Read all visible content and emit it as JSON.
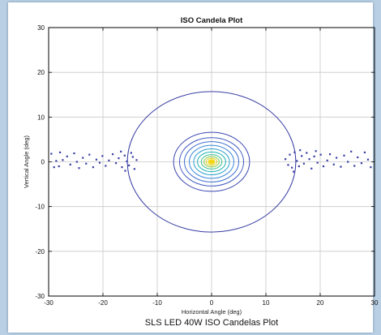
{
  "figure": {
    "caption": "SLS LED 40W ISO Candelas Plot"
  },
  "chart_data": {
    "type": "contour",
    "title": "ISO Candela Plot",
    "xlabel": "Horizontal Angle (deg)",
    "ylabel": "Vertical Angle (deg)",
    "xlim": [
      -30,
      30
    ],
    "ylim": [
      -30,
      30
    ],
    "xticks": [
      -30,
      -20,
      -10,
      0,
      10,
      20,
      30
    ],
    "yticks": [
      -30,
      -20,
      -10,
      0,
      10,
      20,
      30
    ],
    "grid": true,
    "contours": [
      {
        "cx": 0,
        "cy": 0,
        "rx": 15.5,
        "ry": 15.7,
        "color": "#3a3fa4"
      },
      {
        "cx": 0,
        "cy": 0,
        "rx": 7.0,
        "ry": 6.6,
        "color": "#3c46b0"
      },
      {
        "cx": 0,
        "cy": 0,
        "rx": 5.9,
        "ry": 5.4,
        "color": "#3f58c0"
      },
      {
        "cx": 0,
        "cy": 0,
        "rx": 5.0,
        "ry": 4.5,
        "color": "#3f6fd0"
      },
      {
        "cx": 0,
        "cy": 0,
        "rx": 4.1,
        "ry": 3.7,
        "color": "#3a88da"
      },
      {
        "cx": 0,
        "cy": 0,
        "rx": 3.3,
        "ry": 2.9,
        "color": "#2ea1cf"
      },
      {
        "cx": 0,
        "cy": 0,
        "rx": 2.6,
        "ry": 2.2,
        "color": "#22b4b4"
      },
      {
        "cx": 0,
        "cy": 0,
        "rx": 1.9,
        "ry": 1.6,
        "color": "#36be8a"
      },
      {
        "cx": 0,
        "cy": 0,
        "rx": 1.4,
        "ry": 1.15,
        "color": "#86c840"
      },
      {
        "cx": 0,
        "cy": 0,
        "rx": 1.0,
        "ry": 0.8,
        "color": "#d7d020"
      },
      {
        "cx": 0,
        "cy": 0,
        "rx": 0.6,
        "ry": 0.5,
        "color": "#f2d71a"
      }
    ],
    "scatter_color": "#3a3fa4",
    "scatter_points": [
      [
        -29.5,
        1.8
      ],
      [
        -28.6,
        0.2
      ],
      [
        -29.0,
        -1.2
      ],
      [
        -27.9,
        2.1
      ],
      [
        -27.4,
        0.4
      ],
      [
        -28.1,
        -1.0
      ],
      [
        -26.6,
        1.2
      ],
      [
        -26.0,
        -0.6
      ],
      [
        -25.3,
        1.9
      ],
      [
        -24.8,
        0.0
      ],
      [
        -24.4,
        -1.4
      ],
      [
        -23.7,
        0.9
      ],
      [
        -23.1,
        -0.4
      ],
      [
        -22.5,
        1.6
      ],
      [
        -21.8,
        -1.2
      ],
      [
        -21.2,
        0.5
      ],
      [
        -20.6,
        -0.2
      ],
      [
        -20.1,
        1.3
      ],
      [
        -19.5,
        -0.9
      ],
      [
        -18.9,
        0.3
      ],
      [
        -18.2,
        1.7
      ],
      [
        -17.6,
        -0.3
      ],
      [
        -17.1,
        0.8
      ],
      [
        -16.5,
        -1.2
      ],
      [
        -16.0,
        1.4
      ],
      [
        -15.6,
        0.1
      ],
      [
        -15.2,
        -0.8
      ],
      [
        -14.8,
        2.0
      ],
      [
        -14.5,
        1.1
      ],
      [
        -14.2,
        -1.6
      ],
      [
        -16.7,
        2.3
      ],
      [
        -15.9,
        -2.0
      ],
      [
        -13.8,
        0.4
      ],
      [
        13.6,
        0.6
      ],
      [
        14.1,
        -0.7
      ],
      [
        14.4,
        1.6
      ],
      [
        14.8,
        -1.3
      ],
      [
        15.3,
        2.1
      ],
      [
        15.7,
        0.2
      ],
      [
        16.1,
        -1.0
      ],
      [
        16.6,
        1.3
      ],
      [
        17.0,
        -0.4
      ],
      [
        17.5,
        2.0
      ],
      [
        18.0,
        0.6
      ],
      [
        18.4,
        -1.5
      ],
      [
        18.9,
        1.2
      ],
      [
        19.5,
        -0.2
      ],
      [
        20.1,
        1.6
      ],
      [
        20.6,
        -1.0
      ],
      [
        21.3,
        0.3
      ],
      [
        21.8,
        1.7
      ],
      [
        22.5,
        -0.6
      ],
      [
        23.0,
        0.9
      ],
      [
        23.8,
        -1.1
      ],
      [
        24.4,
        1.4
      ],
      [
        25.1,
        0.0
      ],
      [
        25.7,
        2.3
      ],
      [
        26.3,
        -0.9
      ],
      [
        26.9,
        1.0
      ],
      [
        27.6,
        -0.3
      ],
      [
        28.2,
        2.1
      ],
      [
        28.8,
        0.5
      ],
      [
        29.3,
        -1.2
      ],
      [
        16.3,
        2.6
      ],
      [
        19.2,
        2.4
      ],
      [
        15.1,
        -2.2
      ]
    ]
  }
}
